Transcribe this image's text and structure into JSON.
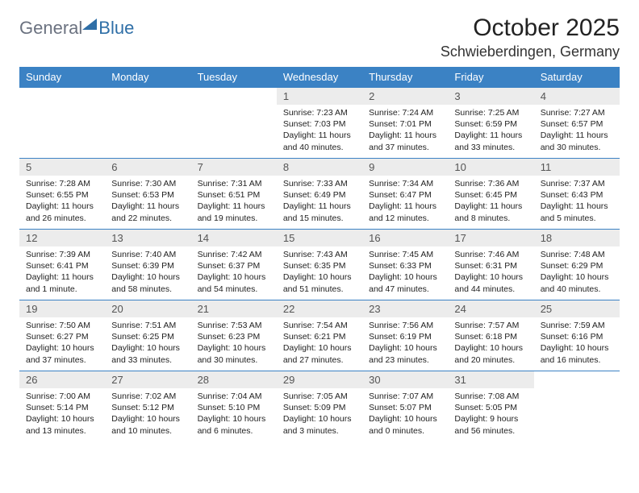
{
  "brand": {
    "part1": "General",
    "part2": "Blue"
  },
  "title": "October 2025",
  "location": "Schwieberdingen, Germany",
  "colors": {
    "header_bg": "#3b82c4",
    "header_text": "#ffffff",
    "daynum_bg": "#ececec",
    "daynum_text": "#555555",
    "body_text": "#222222",
    "border": "#3b82c4",
    "logo_gray": "#6b7280",
    "logo_blue": "#2f6fa7",
    "page_bg": "#ffffff"
  },
  "layout": {
    "columns": 7,
    "rows": 5,
    "font_size_cell": 10.5,
    "font_size_header": 13
  },
  "weekdays": [
    "Sunday",
    "Monday",
    "Tuesday",
    "Wednesday",
    "Thursday",
    "Friday",
    "Saturday"
  ],
  "weeks": [
    [
      null,
      null,
      null,
      {
        "num": "1",
        "sunrise": "Sunrise: 7:23 AM",
        "sunset": "Sunset: 7:03 PM",
        "daylight": "Daylight: 11 hours and 40 minutes."
      },
      {
        "num": "2",
        "sunrise": "Sunrise: 7:24 AM",
        "sunset": "Sunset: 7:01 PM",
        "daylight": "Daylight: 11 hours and 37 minutes."
      },
      {
        "num": "3",
        "sunrise": "Sunrise: 7:25 AM",
        "sunset": "Sunset: 6:59 PM",
        "daylight": "Daylight: 11 hours and 33 minutes."
      },
      {
        "num": "4",
        "sunrise": "Sunrise: 7:27 AM",
        "sunset": "Sunset: 6:57 PM",
        "daylight": "Daylight: 11 hours and 30 minutes."
      }
    ],
    [
      {
        "num": "5",
        "sunrise": "Sunrise: 7:28 AM",
        "sunset": "Sunset: 6:55 PM",
        "daylight": "Daylight: 11 hours and 26 minutes."
      },
      {
        "num": "6",
        "sunrise": "Sunrise: 7:30 AM",
        "sunset": "Sunset: 6:53 PM",
        "daylight": "Daylight: 11 hours and 22 minutes."
      },
      {
        "num": "7",
        "sunrise": "Sunrise: 7:31 AM",
        "sunset": "Sunset: 6:51 PM",
        "daylight": "Daylight: 11 hours and 19 minutes."
      },
      {
        "num": "8",
        "sunrise": "Sunrise: 7:33 AM",
        "sunset": "Sunset: 6:49 PM",
        "daylight": "Daylight: 11 hours and 15 minutes."
      },
      {
        "num": "9",
        "sunrise": "Sunrise: 7:34 AM",
        "sunset": "Sunset: 6:47 PM",
        "daylight": "Daylight: 11 hours and 12 minutes."
      },
      {
        "num": "10",
        "sunrise": "Sunrise: 7:36 AM",
        "sunset": "Sunset: 6:45 PM",
        "daylight": "Daylight: 11 hours and 8 minutes."
      },
      {
        "num": "11",
        "sunrise": "Sunrise: 7:37 AM",
        "sunset": "Sunset: 6:43 PM",
        "daylight": "Daylight: 11 hours and 5 minutes."
      }
    ],
    [
      {
        "num": "12",
        "sunrise": "Sunrise: 7:39 AM",
        "sunset": "Sunset: 6:41 PM",
        "daylight": "Daylight: 11 hours and 1 minute."
      },
      {
        "num": "13",
        "sunrise": "Sunrise: 7:40 AM",
        "sunset": "Sunset: 6:39 PM",
        "daylight": "Daylight: 10 hours and 58 minutes."
      },
      {
        "num": "14",
        "sunrise": "Sunrise: 7:42 AM",
        "sunset": "Sunset: 6:37 PM",
        "daylight": "Daylight: 10 hours and 54 minutes."
      },
      {
        "num": "15",
        "sunrise": "Sunrise: 7:43 AM",
        "sunset": "Sunset: 6:35 PM",
        "daylight": "Daylight: 10 hours and 51 minutes."
      },
      {
        "num": "16",
        "sunrise": "Sunrise: 7:45 AM",
        "sunset": "Sunset: 6:33 PM",
        "daylight": "Daylight: 10 hours and 47 minutes."
      },
      {
        "num": "17",
        "sunrise": "Sunrise: 7:46 AM",
        "sunset": "Sunset: 6:31 PM",
        "daylight": "Daylight: 10 hours and 44 minutes."
      },
      {
        "num": "18",
        "sunrise": "Sunrise: 7:48 AM",
        "sunset": "Sunset: 6:29 PM",
        "daylight": "Daylight: 10 hours and 40 minutes."
      }
    ],
    [
      {
        "num": "19",
        "sunrise": "Sunrise: 7:50 AM",
        "sunset": "Sunset: 6:27 PM",
        "daylight": "Daylight: 10 hours and 37 minutes."
      },
      {
        "num": "20",
        "sunrise": "Sunrise: 7:51 AM",
        "sunset": "Sunset: 6:25 PM",
        "daylight": "Daylight: 10 hours and 33 minutes."
      },
      {
        "num": "21",
        "sunrise": "Sunrise: 7:53 AM",
        "sunset": "Sunset: 6:23 PM",
        "daylight": "Daylight: 10 hours and 30 minutes."
      },
      {
        "num": "22",
        "sunrise": "Sunrise: 7:54 AM",
        "sunset": "Sunset: 6:21 PM",
        "daylight": "Daylight: 10 hours and 27 minutes."
      },
      {
        "num": "23",
        "sunrise": "Sunrise: 7:56 AM",
        "sunset": "Sunset: 6:19 PM",
        "daylight": "Daylight: 10 hours and 23 minutes."
      },
      {
        "num": "24",
        "sunrise": "Sunrise: 7:57 AM",
        "sunset": "Sunset: 6:18 PM",
        "daylight": "Daylight: 10 hours and 20 minutes."
      },
      {
        "num": "25",
        "sunrise": "Sunrise: 7:59 AM",
        "sunset": "Sunset: 6:16 PM",
        "daylight": "Daylight: 10 hours and 16 minutes."
      }
    ],
    [
      {
        "num": "26",
        "sunrise": "Sunrise: 7:00 AM",
        "sunset": "Sunset: 5:14 PM",
        "daylight": "Daylight: 10 hours and 13 minutes."
      },
      {
        "num": "27",
        "sunrise": "Sunrise: 7:02 AM",
        "sunset": "Sunset: 5:12 PM",
        "daylight": "Daylight: 10 hours and 10 minutes."
      },
      {
        "num": "28",
        "sunrise": "Sunrise: 7:04 AM",
        "sunset": "Sunset: 5:10 PM",
        "daylight": "Daylight: 10 hours and 6 minutes."
      },
      {
        "num": "29",
        "sunrise": "Sunrise: 7:05 AM",
        "sunset": "Sunset: 5:09 PM",
        "daylight": "Daylight: 10 hours and 3 minutes."
      },
      {
        "num": "30",
        "sunrise": "Sunrise: 7:07 AM",
        "sunset": "Sunset: 5:07 PM",
        "daylight": "Daylight: 10 hours and 0 minutes."
      },
      {
        "num": "31",
        "sunrise": "Sunrise: 7:08 AM",
        "sunset": "Sunset: 5:05 PM",
        "daylight": "Daylight: 9 hours and 56 minutes."
      },
      null
    ]
  ]
}
